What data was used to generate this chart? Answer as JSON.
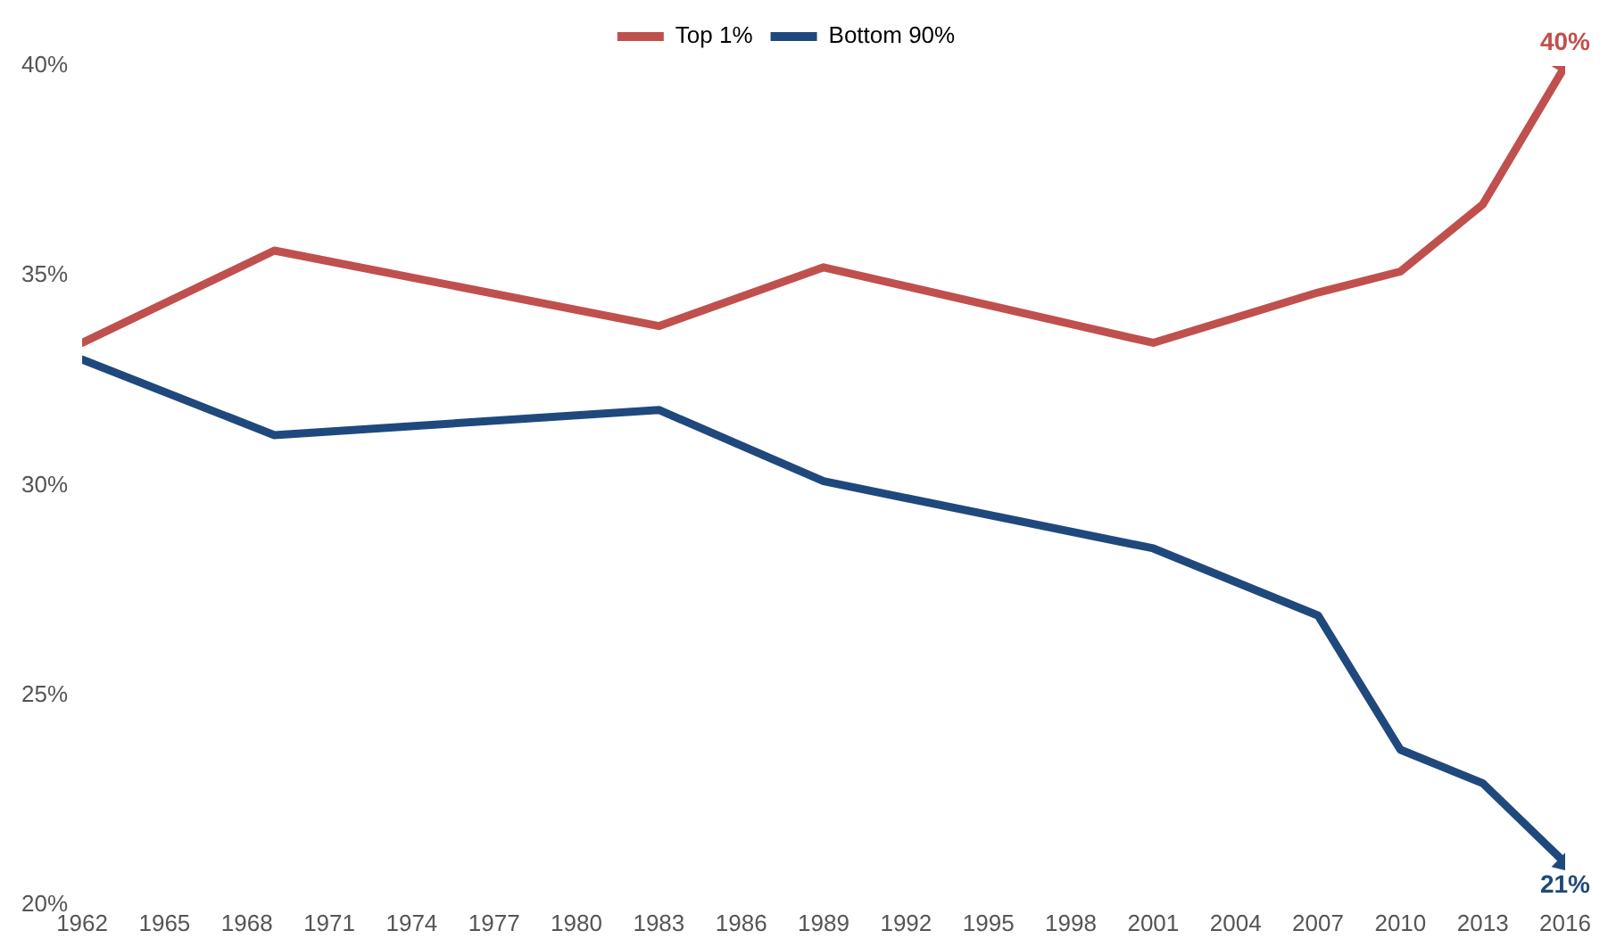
{
  "chart_data": {
    "type": "line",
    "x": [
      1962,
      1969,
      1983,
      1989,
      2001,
      2007,
      2010,
      2013,
      2016
    ],
    "series": [
      {
        "name": "Top 1%",
        "color": "#c0504d",
        "values": [
          33.4,
          35.6,
          33.8,
          35.2,
          33.4,
          34.6,
          35.1,
          36.7,
          40
        ],
        "value_labels": [
          null,
          null,
          null,
          null,
          null,
          null,
          null,
          null,
          "40%"
        ]
      },
      {
        "name": "Bottom 90%",
        "color": "#1f497d",
        "values": [
          33.0,
          31.2,
          31.8,
          30.1,
          28.5,
          26.9,
          23.7,
          22.9,
          21
        ],
        "value_labels": [
          null,
          null,
          null,
          null,
          null,
          null,
          null,
          null,
          "21%"
        ]
      }
    ],
    "xlim": [
      1962,
      2016
    ],
    "xticks": [
      1962,
      1965,
      1968,
      1971,
      1974,
      1977,
      1980,
      1983,
      1986,
      1989,
      1992,
      1995,
      1998,
      2001,
      2004,
      2007,
      2010,
      2013,
      2016
    ],
    "ylim": [
      20,
      40
    ],
    "yticks": [
      {
        "value": 20,
        "label": "20%"
      },
      {
        "value": 25,
        "label": "25%"
      },
      {
        "value": 30,
        "label": "30%"
      },
      {
        "value": 35,
        "label": "35%"
      },
      {
        "value": 40,
        "label": "40%"
      }
    ],
    "grid": false,
    "legend": "top",
    "marker": "none",
    "line_style": "solid"
  }
}
